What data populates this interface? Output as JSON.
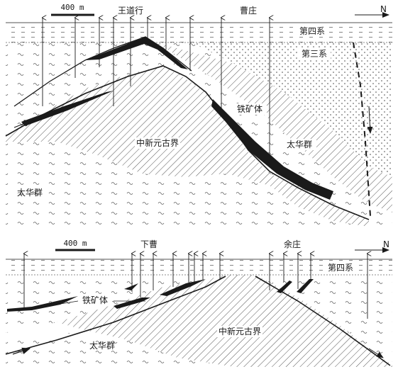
{
  "section_top": {
    "scale_label": "400 m",
    "north_label": "N",
    "place_1": "王道行",
    "place_2": "曹庄",
    "quaternary": "第四系",
    "tertiary": "第三系",
    "iron_ore": "铁矿体",
    "mesoproterozoic": "中新元古界",
    "taihua_right": "太华群",
    "taihua_left": "太华群"
  },
  "section_bottom": {
    "scale_label": "400 m",
    "north_label": "N",
    "place_1": "下曹",
    "place_2": "余庄",
    "quaternary": "第四系",
    "iron_ore": "铁矿体",
    "mesoproterozoic": "中新元古界",
    "taihua": "太华群"
  },
  "colors": {
    "ink": "#1a1a1a",
    "hatch": "#555555",
    "background": "#ffffff"
  }
}
